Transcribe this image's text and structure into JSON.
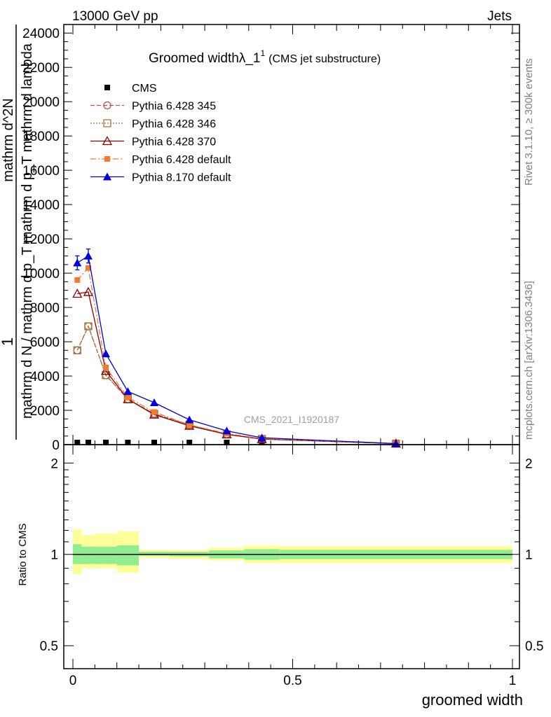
{
  "header": {
    "energy": "13000 GeV pp",
    "process": "Jets"
  },
  "side_labels": {
    "rivet": "Rivet 3.1.10, ≥ 300k events",
    "mcplots": "mcplots.cern.ch [arXiv:1306.3436]"
  },
  "chart_data": {
    "type": "line",
    "title_main": "Groomed widthλ_1",
    "title_sup": "1",
    "title_note": "(CMS jet substructure)",
    "watermark": "CMS_2021_I1920187",
    "xlabel": "groomed width",
    "ylabel_parts": [
      "1",
      "mathrm d N / mathrm d p_T mathrm d p_T mathrm d lambda",
      "mathrm d^2N"
    ],
    "ratio_ylabel": "Ratio to CMS",
    "xlim": [
      0,
      1
    ],
    "ylim": [
      0,
      24500
    ],
    "ratio_ylim": [
      0.42,
      2.3
    ],
    "x_ticks": [
      "0",
      "0.5",
      "1"
    ],
    "y_ticks": [
      "0",
      "2000",
      "4000",
      "6000",
      "8000",
      "10000",
      "12000",
      "14000",
      "16000",
      "18000",
      "20000",
      "22000",
      "24000"
    ],
    "ratio_ticks": [
      "0.5",
      "1",
      "2"
    ],
    "legend_position": "top-left",
    "x": [
      0.01,
      0.035,
      0.075,
      0.125,
      0.185,
      0.265,
      0.35,
      0.43,
      0.735
    ],
    "series": [
      {
        "name": "CMS",
        "values": [
          0,
          0,
          0,
          0,
          0,
          0,
          0,
          0,
          0
        ]
      },
      {
        "name": "Pythia 6.428 345",
        "values": [
          5500,
          6900,
          4050,
          2650,
          1800,
          1150,
          600,
          330,
          60
        ]
      },
      {
        "name": "Pythia 6.428 346",
        "values": [
          5500,
          6900,
          4050,
          2650,
          1800,
          1150,
          600,
          330,
          60
        ]
      },
      {
        "name": "Pythia 6.428 370",
        "values": [
          8800,
          8900,
          4300,
          2650,
          1750,
          1100,
          600,
          320,
          60
        ]
      },
      {
        "name": "Pythia 6.428 default",
        "values": [
          9600,
          10300,
          4500,
          2750,
          1900,
          1150,
          650,
          350,
          60
        ]
      },
      {
        "name": "Pythia 8.170 default",
        "values": [
          10600,
          11000,
          5300,
          3100,
          2450,
          1450,
          800,
          400,
          60
        ]
      }
    ],
    "uncertainty_bins": [
      {
        "lo": 0.0,
        "hi": 0.02,
        "stat": [
          0.93,
          1.08
        ],
        "total": [
          0.86,
          1.21
        ]
      },
      {
        "lo": 0.02,
        "hi": 0.05,
        "stat": [
          0.93,
          1.06
        ],
        "total": [
          0.9,
          1.16
        ]
      },
      {
        "lo": 0.05,
        "hi": 0.1,
        "stat": [
          0.93,
          1.06
        ],
        "total": [
          0.9,
          1.17
        ]
      },
      {
        "lo": 0.1,
        "hi": 0.15,
        "stat": [
          0.92,
          1.07
        ],
        "total": [
          0.87,
          1.19
        ]
      },
      {
        "lo": 0.15,
        "hi": 0.22,
        "stat": [
          0.99,
          1.02
        ],
        "total": [
          0.975,
          1.035
        ]
      },
      {
        "lo": 0.22,
        "hi": 0.31,
        "stat": [
          0.985,
          1.02
        ],
        "total": [
          0.965,
          1.035
        ]
      },
      {
        "lo": 0.31,
        "hi": 0.39,
        "stat": [
          0.97,
          1.03
        ],
        "total": [
          0.955,
          1.05
        ]
      },
      {
        "lo": 0.39,
        "hi": 0.47,
        "stat": [
          0.96,
          1.04
        ],
        "total": [
          0.935,
          1.07
        ]
      },
      {
        "lo": 0.47,
        "hi": 1.0,
        "stat": [
          0.965,
          1.035
        ],
        "total": [
          0.935,
          1.065
        ]
      }
    ],
    "colors": {
      "cms": "#000000",
      "py345": "#c0504d",
      "py346": "#9c7a3c",
      "py370": "#8b0000",
      "pydef": "#f47a30",
      "py8": "#0000dd",
      "stat_band": "#90ee90",
      "total_band": "#ffff99"
    }
  }
}
